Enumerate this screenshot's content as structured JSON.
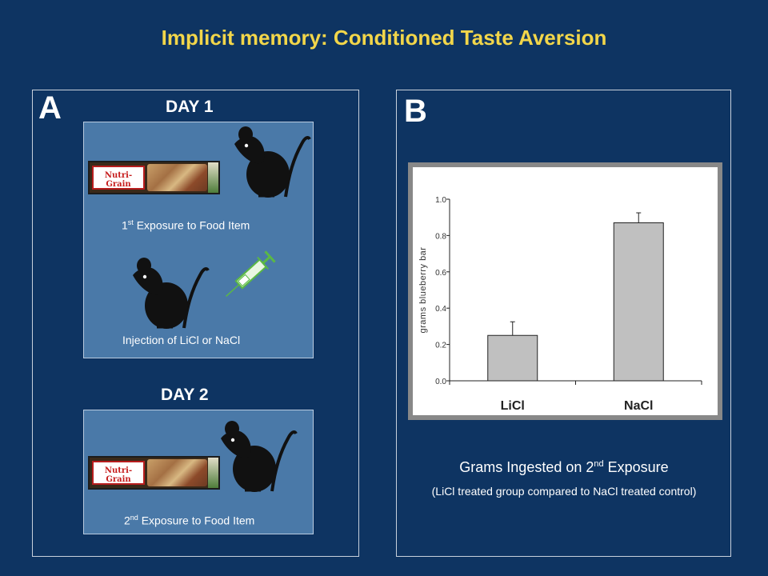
{
  "title": "Implicit memory: Conditioned Taste Aversion",
  "panel_a": {
    "letter": "A",
    "day1": "DAY 1",
    "day2": "DAY 2",
    "brand": "Nutri-Grain",
    "exposure1": {
      "sup": "st",
      "pre": "1",
      "post": " Exposure to Food Item"
    },
    "injection": "Injection of LiCl or NaCl",
    "exposure2": {
      "sup": "nd",
      "pre": "2",
      "post": " Exposure to Food Item"
    }
  },
  "panel_b": {
    "letter": "B",
    "caption_main": {
      "pre": "Grams Ingested on 2",
      "sup": "nd",
      "post": " Exposure"
    },
    "caption_sub": "(LiCl treated group compared to NaCl treated control)"
  },
  "chart_data": {
    "type": "bar",
    "categories": [
      "LiCl",
      "NaCl"
    ],
    "values": [
      0.25,
      0.87
    ],
    "errors": [
      0.075,
      0.055
    ],
    "ylabel": "grams blueberry bar",
    "ylim": [
      0,
      1.0
    ],
    "yticks": [
      "0.0",
      "0.2",
      "0.4",
      "0.6",
      "0.8",
      "1.0"
    ],
    "bar_color": "#c0c0c0"
  },
  "colors": {
    "background": "#0e3462",
    "title": "#f2d64a",
    "scene": "#4a79a8"
  }
}
